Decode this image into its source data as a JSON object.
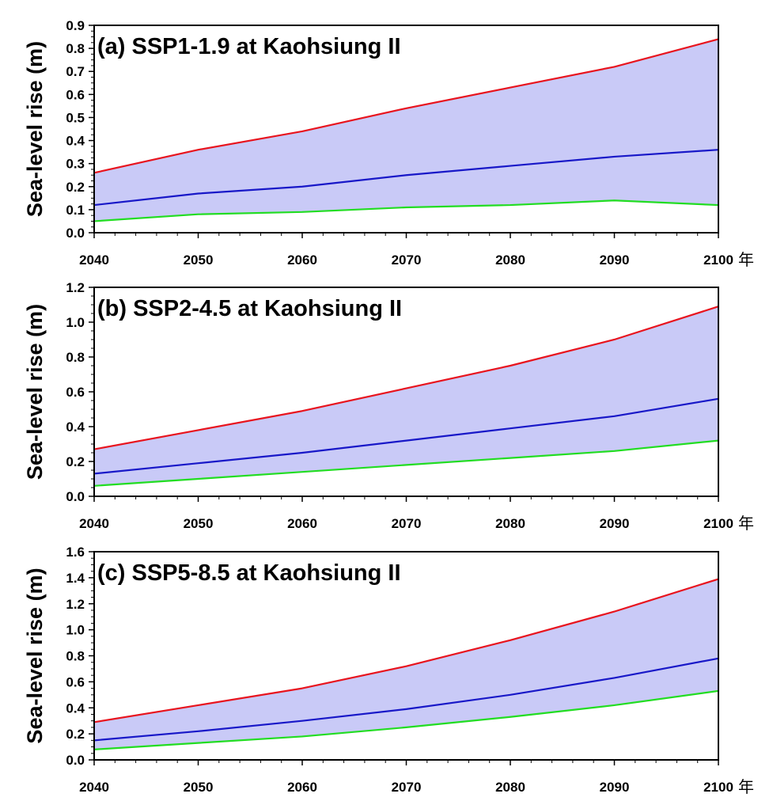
{
  "chart_data": [
    {
      "type": "area",
      "title": "(a) SSP1-1.9 at Kaohsiung II",
      "ylabel": "Sea-level rise (m)",
      "x_unit": "年",
      "x": [
        2040,
        2050,
        2060,
        2070,
        2080,
        2090,
        2100
      ],
      "xticks": [
        "2040",
        "2050",
        "2060",
        "2070",
        "2080",
        "2090",
        "2100"
      ],
      "ylim": [
        0,
        0.9
      ],
      "yticks": [
        "0.0",
        "0.1",
        "0.2",
        "0.3",
        "0.4",
        "0.5",
        "0.6",
        "0.7",
        "0.8",
        "0.9"
      ],
      "series": [
        {
          "color": "#e8141e",
          "values": [
            0.26,
            0.36,
            0.44,
            0.54,
            0.63,
            0.72,
            0.84
          ]
        },
        {
          "color": "#1818c8",
          "values": [
            0.12,
            0.17,
            0.2,
            0.25,
            0.29,
            0.33,
            0.36
          ]
        },
        {
          "color": "#22dd22",
          "values": [
            0.05,
            0.08,
            0.09,
            0.11,
            0.12,
            0.14,
            0.12
          ]
        }
      ],
      "band_color": "#c9caf7"
    },
    {
      "type": "area",
      "title": "(b) SSP2-4.5 at Kaohsiung II",
      "ylabel": "Sea-level rise (m)",
      "x_unit": "年",
      "x": [
        2040,
        2050,
        2060,
        2070,
        2080,
        2090,
        2100
      ],
      "xticks": [
        "2040",
        "2050",
        "2060",
        "2070",
        "2080",
        "2090",
        "2100"
      ],
      "ylim": [
        0,
        1.2
      ],
      "yticks": [
        "0.0",
        "0.2",
        "0.4",
        "0.6",
        "0.8",
        "1.0",
        "1.2"
      ],
      "series": [
        {
          "color": "#e8141e",
          "values": [
            0.27,
            0.38,
            0.49,
            0.62,
            0.75,
            0.9,
            1.09
          ]
        },
        {
          "color": "#1818c8",
          "values": [
            0.13,
            0.19,
            0.25,
            0.32,
            0.39,
            0.46,
            0.56
          ]
        },
        {
          "color": "#22dd22",
          "values": [
            0.06,
            0.1,
            0.14,
            0.18,
            0.22,
            0.26,
            0.32
          ]
        }
      ],
      "band_color": "#c9caf7"
    },
    {
      "type": "area",
      "title": "(c) SSP5-8.5 at Kaohsiung II",
      "ylabel": "Sea-level rise (m)",
      "x_unit": "年",
      "x": [
        2040,
        2050,
        2060,
        2070,
        2080,
        2090,
        2100
      ],
      "xticks": [
        "2040",
        "2050",
        "2060",
        "2070",
        "2080",
        "2090",
        "2100"
      ],
      "ylim": [
        0,
        1.6
      ],
      "yticks": [
        "0.0",
        "0.2",
        "0.4",
        "0.6",
        "0.8",
        "1.0",
        "1.2",
        "1.4",
        "1.6"
      ],
      "series": [
        {
          "color": "#e8141e",
          "values": [
            0.29,
            0.42,
            0.55,
            0.72,
            0.92,
            1.14,
            1.39
          ]
        },
        {
          "color": "#1818c8",
          "values": [
            0.15,
            0.22,
            0.3,
            0.39,
            0.5,
            0.63,
            0.78
          ]
        },
        {
          "color": "#22dd22",
          "values": [
            0.08,
            0.13,
            0.18,
            0.25,
            0.33,
            0.42,
            0.53
          ]
        }
      ],
      "band_color": "#c9caf7"
    }
  ]
}
